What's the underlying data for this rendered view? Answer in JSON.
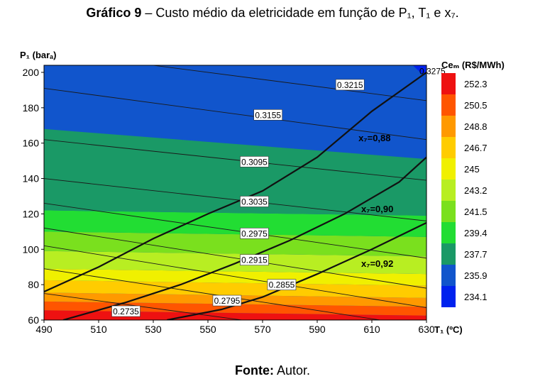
{
  "caption": {
    "bold": "Gráfico 9",
    "text": " – Custo médio da eletricidade em função de P₁, T₁ e x₇."
  },
  "source": {
    "bold": "Fonte:",
    "text": " Autor."
  },
  "chart_data": {
    "type": "heatmap",
    "ylabel": "P₁ (barₐ)",
    "xlabel": "T₁ (ºC)",
    "colorbar_title": "Ceₘ (R$/MWh)",
    "xlim": [
      490,
      630
    ],
    "ylim": [
      60,
      204
    ],
    "x_ticks": [
      "490",
      "510",
      "530",
      "550",
      "570",
      "590",
      "610",
      "630"
    ],
    "y_ticks": [
      "60",
      "80",
      "100",
      "120",
      "140",
      "160",
      "180",
      "200"
    ],
    "colorbar": {
      "labels": [
        "252.3",
        "250.5",
        "248.8",
        "246.7",
        "245",
        "243.2",
        "241.5",
        "239.4",
        "237.7",
        "235.9",
        "234.1"
      ],
      "colors": [
        "#ee1111",
        "#ff5500",
        "#ff9900",
        "#ffcc00",
        "#f0f000",
        "#b8ee22",
        "#7ae01e",
        "#22dd33",
        "#1a9966",
        "#1155cc",
        "#0022ee"
      ]
    },
    "color_bands": [
      {
        "value": "252.3",
        "y0": 60,
        "y1": 65.5
      },
      {
        "value": "250.5",
        "y0": 65.5,
        "y1": 70.5
      },
      {
        "value": "248.8",
        "y0": 70.5,
        "y1": 75.5
      },
      {
        "value": "246.7",
        "y0": 75.5,
        "y1": 82.5
      },
      {
        "value": "245",
        "y0": 82.5,
        "y1": 89
      },
      {
        "value": "243.2",
        "y0": 89,
        "y1": 99
      },
      {
        "value": "241.5",
        "y0": 99,
        "y1": 110
      },
      {
        "value": "239.4",
        "y0": 110,
        "y1": 122
      },
      {
        "value": "237.7",
        "y0": 122,
        "y1": 153
      }
    ],
    "contours": [
      {
        "label": "0.2735",
        "x": 520,
        "y": 65,
        "yl": 75,
        "yr": 46
      },
      {
        "label": "0.2795",
        "x": 557,
        "y": 71,
        "yl": 89,
        "yr": 56
      },
      {
        "label": "0.2855",
        "x": 577,
        "y": 80,
        "yl": 102,
        "yr": 67
      },
      {
        "label": "0.2915",
        "x": 567,
        "y": 94,
        "yl": 112,
        "yr": 78
      },
      {
        "label": "0.2975",
        "x": 567,
        "y": 109,
        "yl": 126,
        "yr": 95
      },
      {
        "label": "0.3035",
        "x": 567,
        "y": 127,
        "yl": 140,
        "yr": 116
      },
      {
        "label": "0.3095",
        "x": 567,
        "y": 149.5,
        "yl": 162,
        "yr": 139
      },
      {
        "label": "0.3155",
        "x": 572,
        "y": 176,
        "yl": 191,
        "yr": 162
      },
      {
        "label": "0.3215",
        "x": 602,
        "y": 193,
        "yl": 212,
        "yr": 184
      },
      {
        "label": "0.3275",
        "x": 630,
        "y": 200.5
      }
    ],
    "quality_lines": [
      {
        "label": "x₇=0,88",
        "label_x": 611,
        "label_y": 163,
        "points": [
          [
            490,
            76
          ],
          [
            510,
            90
          ],
          [
            530,
            106
          ],
          [
            550,
            120
          ],
          [
            570,
            133
          ],
          [
            590,
            152
          ],
          [
            610,
            178
          ],
          [
            630,
            200
          ]
        ]
      },
      {
        "label": "x₇=0,90",
        "label_x": 612,
        "label_y": 123,
        "points": [
          [
            497,
            60
          ],
          [
            520,
            70
          ],
          [
            540,
            80
          ],
          [
            560,
            92
          ],
          [
            580,
            105
          ],
          [
            600,
            120
          ],
          [
            620,
            138
          ],
          [
            630,
            152
          ]
        ]
      },
      {
        "label": "x₇=0,92",
        "label_x": 612,
        "label_y": 92,
        "points": [
          [
            535,
            60
          ],
          [
            555,
            66
          ],
          [
            570,
            73
          ],
          [
            590,
            86
          ],
          [
            610,
            100
          ],
          [
            630,
            115
          ]
        ]
      }
    ]
  }
}
